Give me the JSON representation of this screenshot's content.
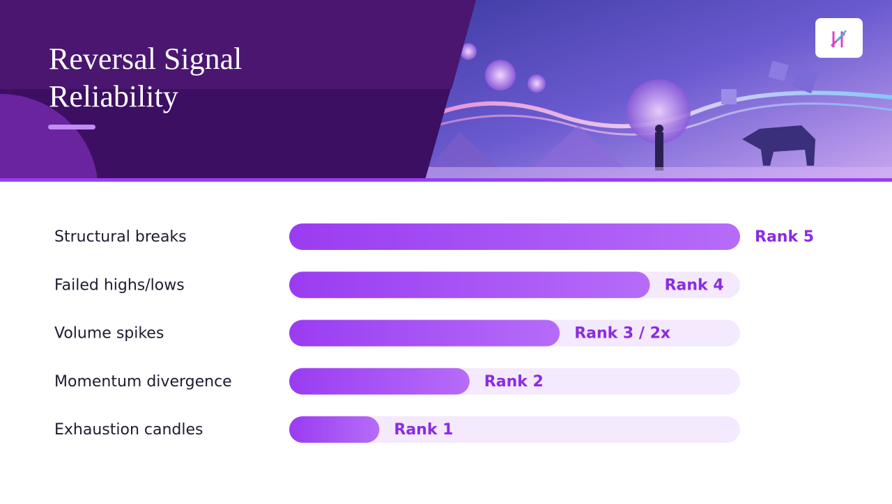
{
  "chart_data": {
    "type": "bar",
    "orientation": "horizontal",
    "title": "Reversal Signal Reliability",
    "categories": [
      "Structural breaks",
      "Failed highs/lows",
      "Volume spikes",
      "Momentum divergence",
      "Exhaustion candles"
    ],
    "values": [
      5,
      4,
      3,
      2,
      1
    ],
    "value_labels": [
      "Rank 5",
      "Rank 4",
      "Rank 3 / 2x",
      "Rank 2",
      "Rank 1"
    ],
    "xlim": [
      0,
      5
    ],
    "color": "#a040f0"
  }
}
